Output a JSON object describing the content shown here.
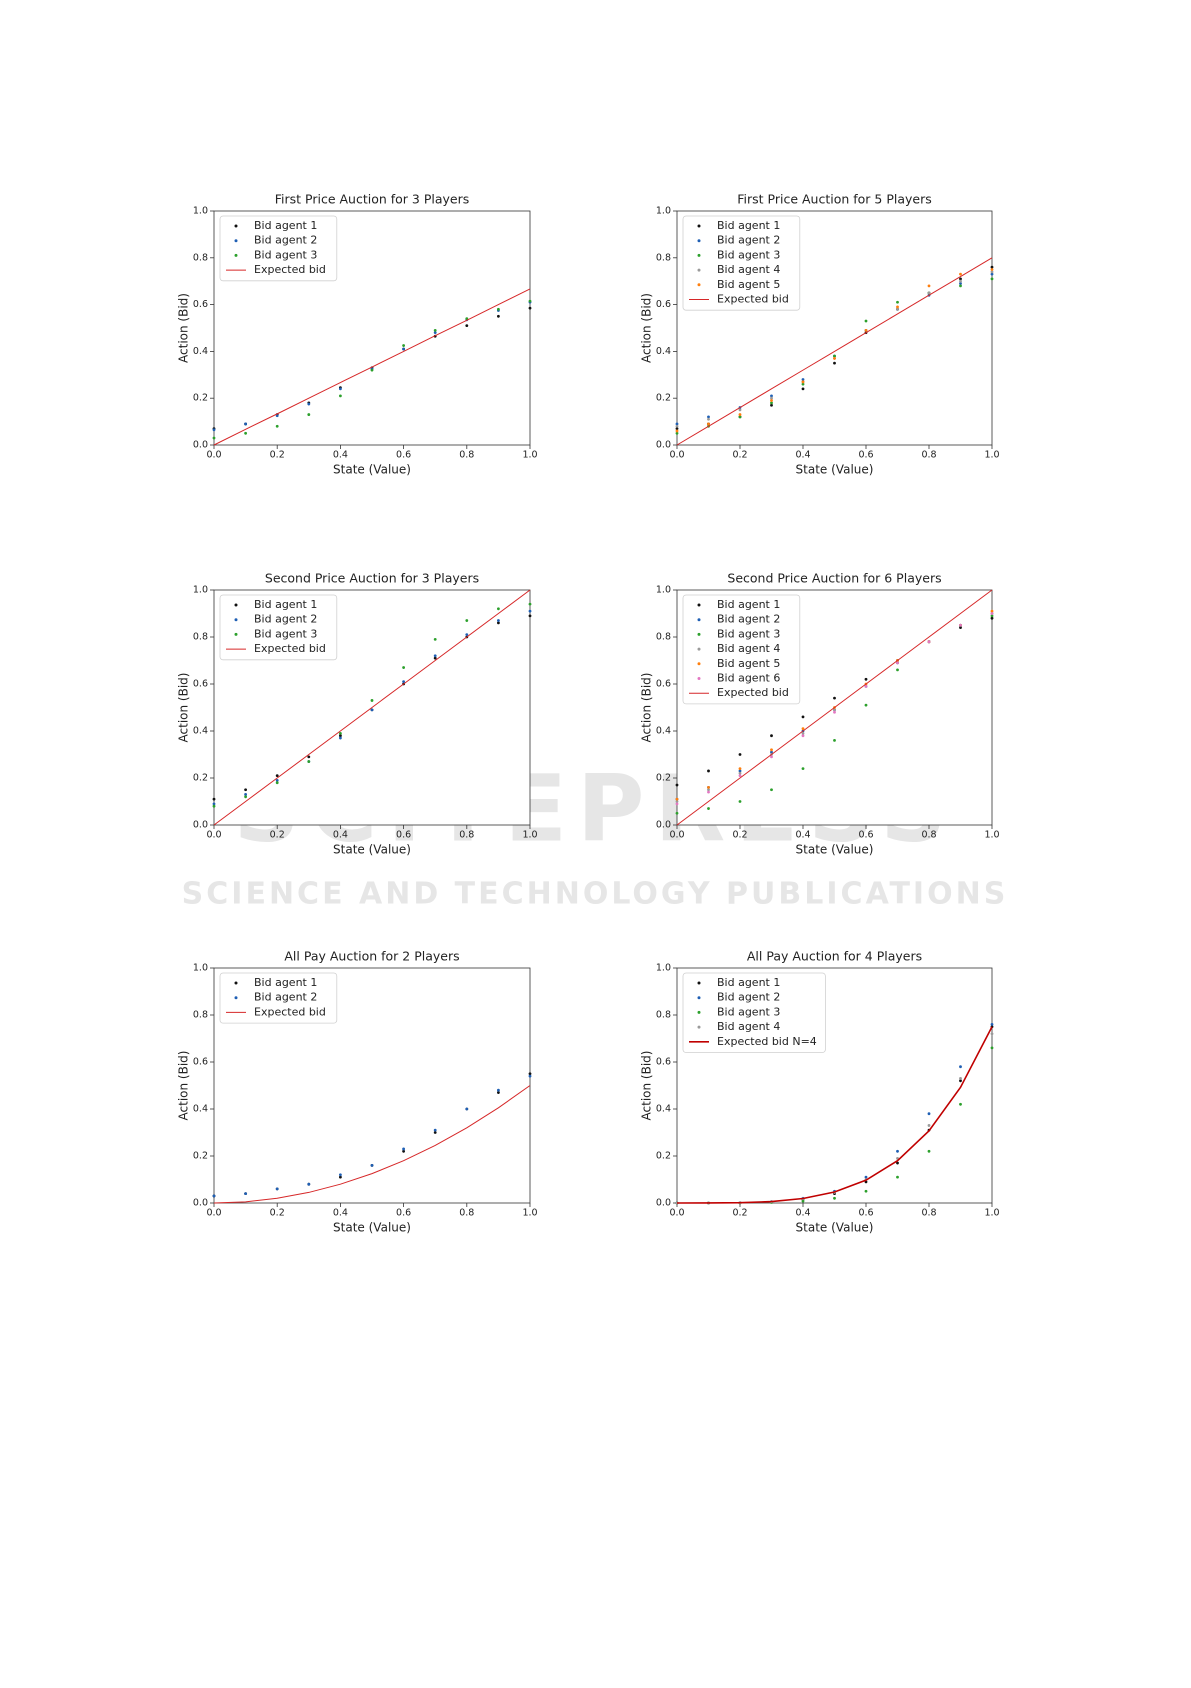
{
  "watermark": {
    "title": "SCITEPRESS",
    "subtitle": "SCIENCE AND TECHNOLOGY PUBLICATIONS"
  },
  "chart_data": [
    {
      "type": "scatter",
      "title": "First Price Auction for 3 Players",
      "xlabel": "State (Value)",
      "ylabel": "Action (Bid)",
      "legend": "upper left",
      "x": [
        0,
        0.1,
        0.2,
        0.3,
        0.4,
        0.5,
        0.6,
        0.7,
        0.8,
        0.9,
        1
      ],
      "series": [
        {
          "name": "Bid agent 1",
          "color": "#111111",
          "style": "dots",
          "values": [
            0.07,
            0.09,
            0.13,
            0.18,
            0.245,
            0.33,
            0.41,
            0.465,
            0.51,
            0.55,
            0.585
          ]
        },
        {
          "name": "Bid agent 2",
          "color": "#1f5fb4",
          "style": "dots",
          "values": [
            0.065,
            0.09,
            0.125,
            0.175,
            0.24,
            0.325,
            0.41,
            0.48,
            0.535,
            0.575,
            0.61
          ]
        },
        {
          "name": "Bid agent 3",
          "color": "#2ca02c",
          "style": "dots",
          "values": [
            0.03,
            0.05,
            0.08,
            0.13,
            0.21,
            0.32,
            0.425,
            0.49,
            0.54,
            0.58,
            0.615
          ]
        },
        {
          "name": "Expected bid",
          "color": "#d62728",
          "style": "line",
          "values": [
            0,
            0.067,
            0.133,
            0.2,
            0.267,
            0.333,
            0.4,
            0.467,
            0.533,
            0.6,
            0.667
          ]
        }
      ],
      "xlim": [
        0,
        1
      ],
      "ylim": [
        0,
        1
      ],
      "xticks": [
        {
          "value": 0,
          "label": "0.0"
        },
        {
          "value": 0.2,
          "label": "0.2"
        },
        {
          "value": 0.4,
          "label": "0.4"
        },
        {
          "value": 0.6,
          "label": "0.6"
        },
        {
          "value": 0.8,
          "label": "0.8"
        },
        {
          "value": 1,
          "label": "1.0"
        }
      ],
      "yticks": [
        {
          "value": 0,
          "label": "0.0"
        },
        {
          "value": 0.2,
          "label": "0.2"
        },
        {
          "value": 0.4,
          "label": "0.4"
        },
        {
          "value": 0.6,
          "label": "0.6"
        },
        {
          "value": 0.8,
          "label": "0.8"
        },
        {
          "value": 1,
          "label": "1.0"
        }
      ]
    },
    {
      "type": "scatter",
      "title": "First Price Auction for 5 Players",
      "xlabel": "State (Value)",
      "ylabel": "Action (Bid)",
      "legend": "upper left",
      "x": [
        0,
        0.1,
        0.2,
        0.3,
        0.4,
        0.5,
        0.6,
        0.7,
        0.8,
        0.9,
        1
      ],
      "series": [
        {
          "name": "Bid agent 1",
          "color": "#111111",
          "style": "dots",
          "values": [
            0.07,
            0.09,
            0.12,
            0.17,
            0.24,
            0.35,
            0.48,
            0.58,
            0.65,
            0.71,
            0.76
          ]
        },
        {
          "name": "Bid agent 2",
          "color": "#1f5fb4",
          "style": "dots",
          "values": [
            0.09,
            0.12,
            0.16,
            0.21,
            0.28,
            0.38,
            0.49,
            0.58,
            0.64,
            0.69,
            0.73
          ]
        },
        {
          "name": "Bid agent 3",
          "color": "#2ca02c",
          "style": "dots",
          "values": [
            0.05,
            0.08,
            0.12,
            0.18,
            0.26,
            0.38,
            0.53,
            0.61,
            0.65,
            0.68,
            0.71
          ]
        },
        {
          "name": "Bid agent 4",
          "color": "#9a9a9a",
          "style": "dots",
          "values": [
            0.08,
            0.11,
            0.15,
            0.2,
            0.27,
            0.37,
            0.49,
            0.58,
            0.65,
            0.7,
            0.74
          ]
        },
        {
          "name": "Bid agent 5",
          "color": "#ff7f0e",
          "style": "dots",
          "values": [
            0.06,
            0.09,
            0.13,
            0.19,
            0.27,
            0.37,
            0.49,
            0.59,
            0.68,
            0.73,
            0.75
          ]
        },
        {
          "name": "Expected bid",
          "color": "#d62728",
          "style": "line",
          "values": [
            0,
            0.08,
            0.16,
            0.24,
            0.32,
            0.4,
            0.48,
            0.56,
            0.64,
            0.72,
            0.8
          ]
        }
      ],
      "xlim": [
        0,
        1
      ],
      "ylim": [
        0,
        1
      ],
      "xticks": [
        {
          "value": 0,
          "label": "0.0"
        },
        {
          "value": 0.2,
          "label": "0.2"
        },
        {
          "value": 0.4,
          "label": "0.4"
        },
        {
          "value": 0.6,
          "label": "0.6"
        },
        {
          "value": 0.8,
          "label": "0.8"
        },
        {
          "value": 1,
          "label": "1.0"
        }
      ],
      "yticks": [
        {
          "value": 0,
          "label": "0.0"
        },
        {
          "value": 0.2,
          "label": "0.2"
        },
        {
          "value": 0.4,
          "label": "0.4"
        },
        {
          "value": 0.6,
          "label": "0.6"
        },
        {
          "value": 0.8,
          "label": "0.8"
        },
        {
          "value": 1,
          "label": "1.0"
        }
      ]
    },
    {
      "type": "scatter",
      "title": "Second Price Auction for 3 Players",
      "xlabel": "State (Value)",
      "ylabel": "Action (Bid)",
      "legend": "upper left",
      "x": [
        0,
        0.1,
        0.2,
        0.3,
        0.4,
        0.5,
        0.6,
        0.7,
        0.8,
        0.9,
        1
      ],
      "series": [
        {
          "name": "Bid agent 1",
          "color": "#111111",
          "style": "dots",
          "values": [
            0.11,
            0.15,
            0.21,
            0.29,
            0.38,
            0.49,
            0.6,
            0.71,
            0.8,
            0.86,
            0.89
          ]
        },
        {
          "name": "Bid agent 2",
          "color": "#1f5fb4",
          "style": "dots",
          "values": [
            0.09,
            0.13,
            0.19,
            0.27,
            0.37,
            0.49,
            0.61,
            0.72,
            0.81,
            0.87,
            0.91
          ]
        },
        {
          "name": "Bid agent 3",
          "color": "#2ca02c",
          "style": "dots",
          "values": [
            0.08,
            0.12,
            0.18,
            0.27,
            0.39,
            0.53,
            0.67,
            0.79,
            0.87,
            0.92,
            0.94
          ]
        },
        {
          "name": "Expected bid",
          "color": "#d62728",
          "style": "line",
          "values": [
            0,
            0.1,
            0.2,
            0.3,
            0.4,
            0.5,
            0.6,
            0.7,
            0.8,
            0.9,
            1
          ]
        }
      ],
      "xlim": [
        0,
        1
      ],
      "ylim": [
        0,
        1
      ],
      "xticks": [
        {
          "value": 0,
          "label": "0.0"
        },
        {
          "value": 0.2,
          "label": "0.2"
        },
        {
          "value": 0.4,
          "label": "0.4"
        },
        {
          "value": 0.6,
          "label": "0.6"
        },
        {
          "value": 0.8,
          "label": "0.8"
        },
        {
          "value": 1,
          "label": "1.0"
        }
      ],
      "yticks": [
        {
          "value": 0,
          "label": "0.0"
        },
        {
          "value": 0.2,
          "label": "0.2"
        },
        {
          "value": 0.4,
          "label": "0.4"
        },
        {
          "value": 0.6,
          "label": "0.6"
        },
        {
          "value": 0.8,
          "label": "0.8"
        },
        {
          "value": 1,
          "label": "1.0"
        }
      ]
    },
    {
      "type": "scatter",
      "title": "Second Price Auction for 6 Players",
      "xlabel": "State (Value)",
      "ylabel": "Action (Bid)",
      "legend": "upper left",
      "x": [
        0,
        0.1,
        0.2,
        0.3,
        0.4,
        0.5,
        0.6,
        0.7,
        0.8,
        0.9,
        1
      ],
      "series": [
        {
          "name": "Bid agent 1",
          "color": "#111111",
          "style": "dots",
          "values": [
            0.17,
            0.23,
            0.3,
            0.38,
            0.46,
            0.54,
            0.62,
            0.7,
            0.78,
            0.84,
            0.88
          ]
        },
        {
          "name": "Bid agent 2",
          "color": "#1f5fb4",
          "style": "dots",
          "values": [
            0.11,
            0.16,
            0.23,
            0.31,
            0.4,
            0.49,
            0.59,
            0.69,
            0.78,
            0.85,
            0.9
          ]
        },
        {
          "name": "Bid agent 3",
          "color": "#2ca02c",
          "style": "dots",
          "values": [
            0.05,
            0.07,
            0.1,
            0.15,
            0.24,
            0.36,
            0.51,
            0.66,
            0.78,
            0.85,
            0.89
          ]
        },
        {
          "name": "Bid agent 4",
          "color": "#9a9a9a",
          "style": "dots",
          "values": [
            0.1,
            0.15,
            0.22,
            0.3,
            0.39,
            0.49,
            0.59,
            0.69,
            0.78,
            0.85,
            0.9
          ]
        },
        {
          "name": "Bid agent 5",
          "color": "#ff7f0e",
          "style": "dots",
          "values": [
            0.11,
            0.16,
            0.24,
            0.32,
            0.41,
            0.5,
            0.6,
            0.7,
            0.78,
            0.85,
            0.91
          ]
        },
        {
          "name": "Bid agent 6",
          "color": "#e377c2",
          "style": "dots",
          "values": [
            0.09,
            0.14,
            0.21,
            0.29,
            0.38,
            0.48,
            0.59,
            0.69,
            0.78,
            0.85,
            0.9
          ]
        },
        {
          "name": "Expected bid",
          "color": "#d62728",
          "style": "line",
          "values": [
            0,
            0.1,
            0.2,
            0.3,
            0.4,
            0.5,
            0.6,
            0.7,
            0.8,
            0.9,
            1
          ]
        }
      ],
      "xlim": [
        0,
        1
      ],
      "ylim": [
        0,
        1
      ],
      "xticks": [
        {
          "value": 0,
          "label": "0.0"
        },
        {
          "value": 0.2,
          "label": "0.2"
        },
        {
          "value": 0.4,
          "label": "0.4"
        },
        {
          "value": 0.6,
          "label": "0.6"
        },
        {
          "value": 0.8,
          "label": "0.8"
        },
        {
          "value": 1,
          "label": "1.0"
        }
      ],
      "yticks": [
        {
          "value": 0,
          "label": "0.0"
        },
        {
          "value": 0.2,
          "label": "0.2"
        },
        {
          "value": 0.4,
          "label": "0.4"
        },
        {
          "value": 0.6,
          "label": "0.6"
        },
        {
          "value": 0.8,
          "label": "0.8"
        },
        {
          "value": 1,
          "label": "1.0"
        }
      ]
    },
    {
      "type": "scatter",
      "title": "All Pay Auction for 2 Players",
      "xlabel": "State (Value)",
      "ylabel": "Action (Bid)",
      "legend": "upper left",
      "x": [
        0,
        0.1,
        0.2,
        0.3,
        0.4,
        0.5,
        0.6,
        0.7,
        0.8,
        0.9,
        1
      ],
      "series": [
        {
          "name": "Bid agent 1",
          "color": "#111111",
          "style": "dots",
          "values": [
            0.03,
            0.04,
            0.06,
            0.08,
            0.11,
            0.16,
            0.22,
            0.3,
            0.4,
            0.47,
            0.55
          ]
        },
        {
          "name": "Bid agent 2",
          "color": "#1f5fb4",
          "style": "dots",
          "values": [
            0.03,
            0.04,
            0.06,
            0.08,
            0.12,
            0.16,
            0.23,
            0.31,
            0.4,
            0.48,
            0.54
          ]
        },
        {
          "name": "Expected bid",
          "color": "#d62728",
          "style": "line",
          "values": [
            0,
            0.005,
            0.02,
            0.045,
            0.08,
            0.125,
            0.18,
            0.245,
            0.32,
            0.405,
            0.5
          ]
        }
      ],
      "xlim": [
        0,
        1
      ],
      "ylim": [
        0,
        1
      ],
      "xticks": [
        {
          "value": 0,
          "label": "0.0"
        },
        {
          "value": 0.2,
          "label": "0.2"
        },
        {
          "value": 0.4,
          "label": "0.4"
        },
        {
          "value": 0.6,
          "label": "0.6"
        },
        {
          "value": 0.8,
          "label": "0.8"
        },
        {
          "value": 1,
          "label": "1.0"
        }
      ],
      "yticks": [
        {
          "value": 0,
          "label": "0.0"
        },
        {
          "value": 0.2,
          "label": "0.2"
        },
        {
          "value": 0.4,
          "label": "0.4"
        },
        {
          "value": 0.6,
          "label": "0.6"
        },
        {
          "value": 0.8,
          "label": "0.8"
        },
        {
          "value": 1,
          "label": "1.0"
        }
      ]
    },
    {
      "type": "scatter",
      "title": "All Pay Auction for 4 Players",
      "xlabel": "State (Value)",
      "ylabel": "Action (Bid)",
      "legend": "upper left",
      "x": [
        0,
        0.1,
        0.2,
        0.3,
        0.4,
        0.5,
        0.6,
        0.7,
        0.8,
        0.9,
        1
      ],
      "series": [
        {
          "name": "Bid agent 1",
          "color": "#111111",
          "style": "dots",
          "values": [
            0,
            0,
            0.001,
            0.005,
            0.015,
            0.04,
            0.09,
            0.17,
            0.31,
            0.52,
            0.75
          ]
        },
        {
          "name": "Bid agent 2",
          "color": "#1f5fb4",
          "style": "dots",
          "values": [
            0,
            0,
            0.001,
            0.006,
            0.02,
            0.05,
            0.11,
            0.22,
            0.38,
            0.58,
            0.76
          ]
        },
        {
          "name": "Bid agent 3",
          "color": "#2ca02c",
          "style": "dots",
          "values": [
            0,
            0,
            0,
            0.002,
            0.008,
            0.02,
            0.05,
            0.11,
            0.22,
            0.42,
            0.66
          ]
        },
        {
          "name": "Bid agent 4",
          "color": "#9a9a9a",
          "style": "dots",
          "values": [
            0,
            0,
            0.001,
            0.005,
            0.018,
            0.045,
            0.1,
            0.19,
            0.33,
            0.53,
            0.72
          ]
        },
        {
          "name": "Expected bid N=4",
          "color": "#c00000",
          "style": "line",
          "linewidth": 1.6,
          "values": [
            0,
            7.5e-05,
            0.0012,
            0.0061,
            0.0192,
            0.0469,
            0.0972,
            0.18,
            0.307,
            0.492,
            0.75
          ]
        }
      ],
      "xlim": [
        0,
        1
      ],
      "ylim": [
        0,
        1
      ],
      "xticks": [
        {
          "value": 0,
          "label": "0.0"
        },
        {
          "value": 0.2,
          "label": "0.2"
        },
        {
          "value": 0.4,
          "label": "0.4"
        },
        {
          "value": 0.6,
          "label": "0.6"
        },
        {
          "value": 0.8,
          "label": "0.8"
        },
        {
          "value": 1,
          "label": "1.0"
        }
      ],
      "yticks": [
        {
          "value": 0,
          "label": "0.0"
        },
        {
          "value": 0.2,
          "label": "0.2"
        },
        {
          "value": 0.4,
          "label": "0.4"
        },
        {
          "value": 0.6,
          "label": "0.6"
        },
        {
          "value": 0.8,
          "label": "0.8"
        },
        {
          "value": 1,
          "label": "1.0"
        }
      ]
    }
  ]
}
